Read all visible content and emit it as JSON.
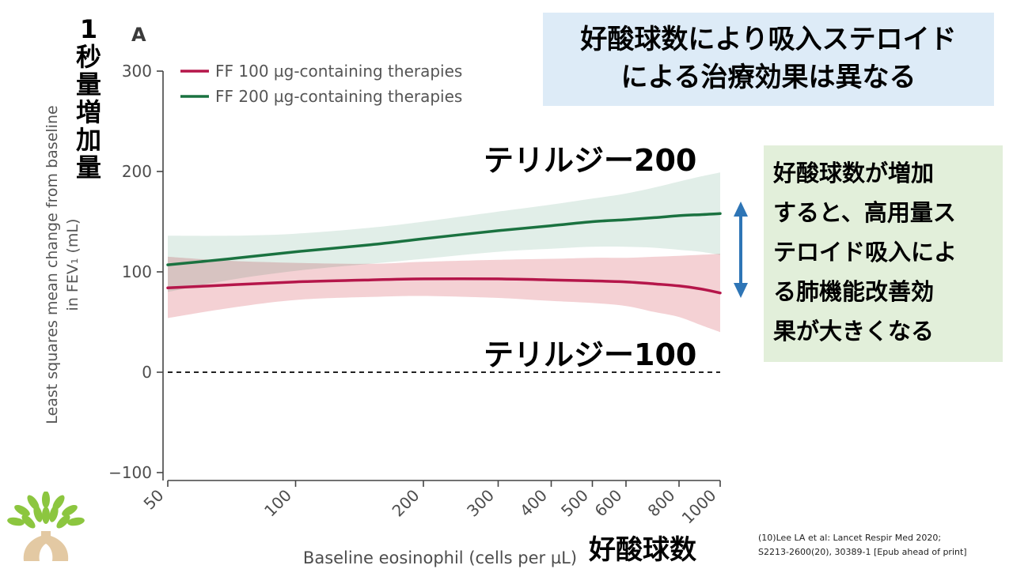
{
  "chart_data": {
    "type": "line",
    "panel_label": "A",
    "xlabel": "Baseline eosinophil (cells per µL)",
    "ylabel": "Least squares mean change from baseline in FEV₁ (mL)",
    "x_scale": "log",
    "xlim": [
      50,
      1000
    ],
    "ylim": [
      -100,
      300
    ],
    "x_ticks": [
      50,
      100,
      200,
      300,
      400,
      500,
      600,
      800,
      1000
    ],
    "y_ticks": [
      -100,
      0,
      100,
      200,
      300
    ],
    "reference_line": 0,
    "legend_position": "top-left",
    "series": [
      {
        "name": "FF 100 µg-containing therapies",
        "color": "#b5164a",
        "band_color": "#f2c9cc",
        "x": [
          50,
          70,
          100,
          150,
          200,
          300,
          400,
          500,
          600,
          700,
          800,
          900,
          1000
        ],
        "values": [
          84,
          87,
          90,
          92,
          93,
          93,
          92,
          91,
          90,
          88,
          86,
          83,
          79
        ],
        "lower": [
          54,
          64,
          72,
          75,
          76,
          74,
          71,
          69,
          66,
          60,
          55,
          47,
          40
        ],
        "upper": [
          115,
          111,
          109,
          108,
          110,
          112,
          113,
          114,
          114,
          115,
          116,
          117,
          118
        ]
      },
      {
        "name": "FF 200 µg-containing therapies",
        "color": "#1a7240",
        "band_color": "#d7e8e0",
        "x": [
          50,
          70,
          100,
          150,
          200,
          300,
          400,
          500,
          600,
          700,
          800,
          900,
          1000
        ],
        "values": [
          107,
          113,
          120,
          127,
          133,
          141,
          146,
          150,
          152,
          154,
          156,
          157,
          158
        ],
        "lower": [
          80,
          92,
          101,
          108,
          113,
          120,
          123,
          125,
          125,
          124,
          122,
          120,
          117
        ],
        "upper": [
          136,
          136,
          138,
          144,
          150,
          160,
          167,
          173,
          178,
          184,
          190,
          195,
          199
        ]
      }
    ]
  },
  "annotations": {
    "y_axis_jp": [
      "1",
      "秒",
      "量",
      "増",
      "加",
      "量"
    ],
    "title_lines": [
      "好酸球数により吸入ステロイド",
      "による治療効果は異なる"
    ],
    "series_label_200": "テリルジー200",
    "series_label_100": "テリルジー100",
    "note_lines": [
      "好酸球数が増加",
      "すると、高用量ス",
      "テロイド吸入によ",
      "る肺機能改善効",
      "果が大きくなる"
    ],
    "x_axis_jp": "好酸球数",
    "citation_lines": [
      "(10)Lee LA et al: Lancet Respir Med 2020;",
      "S2213-2600(20), 30389-1 [Epub ahead of print]"
    ],
    "arrow_color": "#2e75b6"
  },
  "logo": {
    "name": "tree-logo",
    "leaf_color": "#8cc63f",
    "trunk_color": "#e3c9a3"
  }
}
